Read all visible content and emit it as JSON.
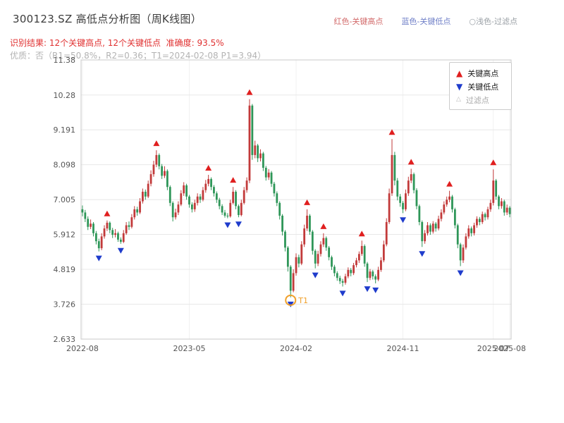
{
  "header": {
    "title": "300123.SZ 高低点分析图（周K线图）",
    "legend_inline": [
      {
        "label": "红色-关键高点",
        "color": "#d26a6a"
      },
      {
        "label": "蓝色-关键低点",
        "color": "#7080c8"
      },
      {
        "label": "○浅色-过滤点",
        "color": "#9aa0a6"
      }
    ],
    "result_line": "识别结果: 12个关键高点, 12个关键低点  准确度: 93.5%",
    "quality_line": "优质：否（R1=50.8%，R2=0.36；T1=2024-02-08 P1=3.94）"
  },
  "chart_legend": {
    "high": "关键高点",
    "low": "关键低点",
    "filtered": "过滤点"
  },
  "icons": {
    "up_triangle": "▲",
    "down_triangle": "▼",
    "open_triangle": "△"
  },
  "chart_data": {
    "type": "candlestick",
    "title": "300123.SZ 高低点分析图（周K线图）",
    "xlabel": "",
    "ylabel": "",
    "frequency": "weekly",
    "start_date": "2022-08-26",
    "ylim": [
      2.633,
      11.38
    ],
    "grid": true,
    "y_ticks": [
      {
        "label": "2.633",
        "v": 2.633
      },
      {
        "label": "3.726",
        "v": 3.726
      },
      {
        "label": "4.819",
        "v": 4.819
      },
      {
        "label": "5.912",
        "v": 5.912
      },
      {
        "label": "7.005",
        "v": 7.005
      },
      {
        "label": "8.098",
        "v": 8.098
      },
      {
        "label": "9.191",
        "v": 9.191
      },
      {
        "label": "10.28",
        "v": 10.28
      },
      {
        "label": "11.38",
        "v": 11.38
      }
    ],
    "x_ticks": [
      {
        "label": "2022-08",
        "i": 0
      },
      {
        "label": "2023-05",
        "i": 39
      },
      {
        "label": "2024-02",
        "i": 78
      },
      {
        "label": "2024-11",
        "i": 117
      },
      {
        "label": "2025-07",
        "i": 150
      },
      {
        "label": "2025-08",
        "i": 156
      }
    ],
    "colors": {
      "up": "#c23a3a",
      "down": "#2e9658",
      "high_marker": "#e01f1f",
      "low_marker": "#1f3ccc",
      "filtered": "#f0a02a",
      "grid": "#e8e8e8",
      "vgrid": "#f1f1f1",
      "axis": "#c8c8c8",
      "tick_text": "#555555"
    },
    "candles": [
      [
        6.7,
        6.82,
        6.48,
        6.6
      ],
      [
        6.6,
        6.68,
        6.3,
        6.4
      ],
      [
        6.4,
        6.48,
        6.05,
        6.15
      ],
      [
        6.15,
        6.38,
        6.08,
        6.25
      ],
      [
        6.25,
        6.3,
        5.85,
        5.95
      ],
      [
        5.95,
        6.02,
        5.6,
        5.7
      ],
      [
        5.7,
        5.78,
        5.38,
        5.48
      ],
      [
        5.48,
        5.95,
        5.42,
        5.85
      ],
      [
        5.85,
        6.2,
        5.78,
        6.1
      ],
      [
        6.1,
        6.35,
        6.02,
        6.28
      ],
      [
        6.28,
        6.32,
        5.95,
        6.05
      ],
      [
        6.05,
        6.12,
        5.8,
        5.9
      ],
      [
        5.9,
        6.08,
        5.82,
        5.95
      ],
      [
        5.95,
        6.0,
        5.68,
        5.75
      ],
      [
        5.75,
        5.82,
        5.62,
        5.68
      ],
      [
        5.68,
        6.05,
        5.64,
        5.95
      ],
      [
        5.95,
        6.3,
        5.9,
        6.2
      ],
      [
        6.2,
        6.32,
        6.05,
        6.15
      ],
      [
        6.15,
        6.55,
        6.1,
        6.45
      ],
      [
        6.45,
        6.8,
        6.38,
        6.7
      ],
      [
        6.7,
        6.78,
        6.5,
        6.6
      ],
      [
        6.6,
        7.05,
        6.55,
        6.95
      ],
      [
        6.95,
        7.35,
        6.88,
        7.25
      ],
      [
        7.25,
        7.32,
        7.0,
        7.1
      ],
      [
        7.1,
        7.6,
        7.05,
        7.5
      ],
      [
        7.5,
        7.92,
        7.42,
        7.8
      ],
      [
        7.8,
        8.22,
        7.72,
        8.1
      ],
      [
        8.1,
        8.55,
        8.02,
        8.4
      ],
      [
        8.4,
        8.45,
        7.95,
        8.05
      ],
      [
        8.05,
        8.12,
        7.65,
        7.75
      ],
      [
        7.75,
        8.05,
        7.68,
        7.9
      ],
      [
        7.9,
        7.95,
        7.3,
        7.4
      ],
      [
        7.4,
        7.45,
        6.8,
        6.9
      ],
      [
        6.9,
        6.95,
        6.32,
        6.45
      ],
      [
        6.45,
        6.72,
        6.38,
        6.6
      ],
      [
        6.6,
        6.95,
        6.52,
        6.85
      ],
      [
        6.85,
        7.3,
        6.8,
        7.2
      ],
      [
        7.2,
        7.55,
        7.12,
        7.45
      ],
      [
        7.45,
        7.5,
        7.0,
        7.1
      ],
      [
        7.1,
        7.15,
        6.75,
        6.85
      ],
      [
        6.85,
        6.92,
        6.6,
        6.7
      ],
      [
        6.7,
        7.0,
        6.62,
        6.9
      ],
      [
        6.9,
        7.2,
        6.82,
        7.1
      ],
      [
        7.1,
        7.18,
        6.9,
        7.0
      ],
      [
        7.0,
        7.4,
        6.95,
        7.3
      ],
      [
        7.3,
        7.62,
        7.22,
        7.5
      ],
      [
        7.5,
        7.78,
        7.42,
        7.65
      ],
      [
        7.65,
        7.7,
        7.3,
        7.4
      ],
      [
        7.4,
        7.46,
        7.1,
        7.2
      ],
      [
        7.2,
        7.26,
        6.9,
        7.0
      ],
      [
        7.0,
        7.06,
        6.7,
        6.8
      ],
      [
        6.8,
        6.86,
        6.52,
        6.6
      ],
      [
        6.6,
        6.68,
        6.44,
        6.5
      ],
      [
        6.5,
        6.58,
        6.42,
        6.48
      ],
      [
        6.48,
        7.0,
        6.44,
        6.9
      ],
      [
        6.9,
        7.4,
        6.85,
        7.25
      ],
      [
        7.25,
        7.3,
        6.7,
        6.8
      ],
      [
        6.8,
        6.85,
        6.45,
        6.52
      ],
      [
        6.52,
        7.0,
        6.48,
        6.9
      ],
      [
        6.9,
        7.4,
        6.85,
        7.3
      ],
      [
        7.3,
        7.7,
        7.22,
        7.6
      ],
      [
        7.6,
        10.15,
        7.52,
        9.95
      ],
      [
        9.95,
        10.0,
        8.25,
        8.4
      ],
      [
        8.4,
        8.85,
        8.3,
        8.7
      ],
      [
        8.7,
        8.75,
        8.18,
        8.3
      ],
      [
        8.3,
        8.58,
        8.2,
        8.45
      ],
      [
        8.45,
        8.5,
        7.9,
        8.0
      ],
      [
        8.0,
        8.06,
        7.6,
        7.7
      ],
      [
        7.7,
        7.96,
        7.62,
        7.85
      ],
      [
        7.85,
        7.9,
        7.4,
        7.5
      ],
      [
        7.5,
        7.56,
        7.1,
        7.2
      ],
      [
        7.2,
        7.26,
        6.8,
        6.9
      ],
      [
        6.9,
        6.95,
        6.38,
        6.5
      ],
      [
        6.5,
        6.55,
        5.88,
        6.0
      ],
      [
        6.0,
        6.05,
        5.38,
        5.5
      ],
      [
        5.5,
        5.55,
        4.75,
        4.9
      ],
      [
        4.9,
        4.95,
        3.94,
        4.15
      ],
      [
        4.15,
        4.82,
        4.1,
        4.7
      ],
      [
        4.7,
        5.32,
        4.62,
        5.2
      ],
      [
        5.2,
        5.28,
        4.88,
        5.0
      ],
      [
        5.0,
        5.7,
        4.95,
        5.6
      ],
      [
        5.6,
        6.22,
        5.52,
        6.1
      ],
      [
        6.1,
        6.7,
        6.02,
        6.5
      ],
      [
        6.5,
        6.55,
        5.9,
        6.0
      ],
      [
        6.0,
        6.05,
        5.28,
        5.4
      ],
      [
        5.4,
        5.45,
        4.85,
        5.0
      ],
      [
        5.0,
        5.4,
        4.92,
        5.3
      ],
      [
        5.3,
        5.7,
        5.22,
        5.6
      ],
      [
        5.6,
        5.95,
        5.52,
        5.8
      ],
      [
        5.8,
        5.85,
        5.4,
        5.5
      ],
      [
        5.5,
        5.55,
        5.1,
        5.2
      ],
      [
        5.2,
        5.25,
        4.8,
        4.9
      ],
      [
        4.9,
        4.96,
        4.6,
        4.7
      ],
      [
        4.7,
        4.76,
        4.46,
        4.55
      ],
      [
        4.55,
        4.62,
        4.36,
        4.45
      ],
      [
        4.45,
        4.52,
        4.28,
        4.4
      ],
      [
        4.4,
        4.68,
        4.34,
        4.6
      ],
      [
        4.6,
        4.88,
        4.54,
        4.8
      ],
      [
        4.8,
        4.86,
        4.6,
        4.7
      ],
      [
        4.7,
        5.02,
        4.64,
        4.95
      ],
      [
        4.95,
        5.18,
        4.88,
        5.1
      ],
      [
        5.1,
        5.38,
        5.02,
        5.3
      ],
      [
        5.3,
        5.72,
        5.24,
        5.55
      ],
      [
        5.55,
        5.6,
        4.9,
        5.0
      ],
      [
        5.0,
        5.05,
        4.42,
        4.55
      ],
      [
        4.55,
        4.83,
        4.48,
        4.75
      ],
      [
        4.75,
        4.8,
        4.5,
        4.6
      ],
      [
        4.6,
        4.66,
        4.38,
        4.5
      ],
      [
        4.5,
        4.9,
        4.45,
        4.8
      ],
      [
        4.8,
        5.2,
        4.74,
        5.1
      ],
      [
        5.1,
        5.72,
        5.04,
        5.6
      ],
      [
        5.6,
        6.42,
        5.54,
        6.3
      ],
      [
        6.3,
        7.35,
        6.24,
        7.2
      ],
      [
        7.2,
        8.9,
        7.12,
        8.4
      ],
      [
        8.4,
        8.5,
        7.45,
        7.6
      ],
      [
        7.6,
        7.68,
        6.98,
        7.1
      ],
      [
        7.1,
        7.18,
        6.78,
        6.9
      ],
      [
        6.9,
        6.96,
        6.58,
        6.7
      ],
      [
        6.7,
        7.32,
        6.64,
        7.2
      ],
      [
        7.2,
        7.72,
        7.12,
        7.6
      ],
      [
        7.6,
        7.97,
        7.52,
        7.8
      ],
      [
        7.8,
        7.85,
        7.2,
        7.3
      ],
      [
        7.3,
        7.36,
        6.7,
        6.8
      ],
      [
        6.8,
        6.85,
        6.2,
        6.3
      ],
      [
        6.3,
        6.35,
        5.52,
        5.7
      ],
      [
        5.7,
        6.05,
        5.62,
        5.95
      ],
      [
        5.95,
        6.3,
        5.88,
        6.2
      ],
      [
        6.2,
        6.26,
        5.9,
        6.0
      ],
      [
        6.0,
        6.33,
        5.94,
        6.25
      ],
      [
        6.25,
        6.3,
        6.0,
        6.1
      ],
      [
        6.1,
        6.5,
        6.04,
        6.4
      ],
      [
        6.4,
        6.7,
        6.32,
        6.6
      ],
      [
        6.6,
        6.95,
        6.54,
        6.85
      ],
      [
        6.85,
        7.1,
        6.78,
        7.0
      ],
      [
        7.0,
        7.28,
        6.92,
        7.1
      ],
      [
        7.1,
        7.15,
        6.6,
        6.7
      ],
      [
        6.7,
        6.75,
        6.1,
        6.2
      ],
      [
        6.2,
        6.25,
        5.48,
        5.6
      ],
      [
        5.6,
        5.65,
        4.92,
        5.1
      ],
      [
        5.1,
        5.6,
        5.02,
        5.5
      ],
      [
        5.5,
        5.95,
        5.44,
        5.85
      ],
      [
        5.85,
        6.2,
        5.78,
        6.1
      ],
      [
        6.1,
        6.16,
        5.85,
        5.95
      ],
      [
        5.95,
        6.28,
        5.88,
        6.2
      ],
      [
        6.2,
        6.48,
        6.12,
        6.4
      ],
      [
        6.4,
        6.46,
        6.2,
        6.3
      ],
      [
        6.3,
        6.63,
        6.24,
        6.55
      ],
      [
        6.55,
        6.6,
        6.35,
        6.45
      ],
      [
        6.45,
        6.78,
        6.38,
        6.7
      ],
      [
        6.7,
        7.0,
        6.62,
        6.9
      ],
      [
        6.9,
        7.95,
        6.82,
        7.6
      ],
      [
        7.6,
        7.65,
        7.0,
        7.1
      ],
      [
        7.1,
        7.15,
        6.7,
        6.8
      ],
      [
        6.8,
        7.05,
        6.72,
        6.95
      ],
      [
        6.95,
        7.0,
        6.5,
        6.6
      ],
      [
        6.6,
        6.85,
        6.52,
        6.75
      ],
      [
        6.75,
        6.8,
        6.45,
        6.55
      ]
    ],
    "key_highs": [
      {
        "i": 9,
        "price": 6.35
      },
      {
        "i": 27,
        "price": 8.55
      },
      {
        "i": 46,
        "price": 7.78
      },
      {
        "i": 55,
        "price": 7.4
      },
      {
        "i": 61,
        "price": 10.15
      },
      {
        "i": 82,
        "price": 6.7
      },
      {
        "i": 88,
        "price": 5.95
      },
      {
        "i": 102,
        "price": 5.72
      },
      {
        "i": 113,
        "price": 8.9
      },
      {
        "i": 120,
        "price": 7.97
      },
      {
        "i": 134,
        "price": 7.28
      },
      {
        "i": 150,
        "price": 7.95
      }
    ],
    "key_lows": [
      {
        "i": 6,
        "price": 5.38
      },
      {
        "i": 14,
        "price": 5.62
      },
      {
        "i": 53,
        "price": 6.42
      },
      {
        "i": 57,
        "price": 6.45
      },
      {
        "i": 76,
        "price": 3.94
      },
      {
        "i": 85,
        "price": 4.85
      },
      {
        "i": 95,
        "price": 4.28
      },
      {
        "i": 104,
        "price": 4.42
      },
      {
        "i": 107,
        "price": 4.38
      },
      {
        "i": 117,
        "price": 6.58
      },
      {
        "i": 124,
        "price": 5.52
      },
      {
        "i": 138,
        "price": 4.92
      }
    ],
    "filtered_points": [
      {
        "i": 76,
        "price": 3.94,
        "label": "T1",
        "date": "2024-02-08"
      }
    ]
  }
}
